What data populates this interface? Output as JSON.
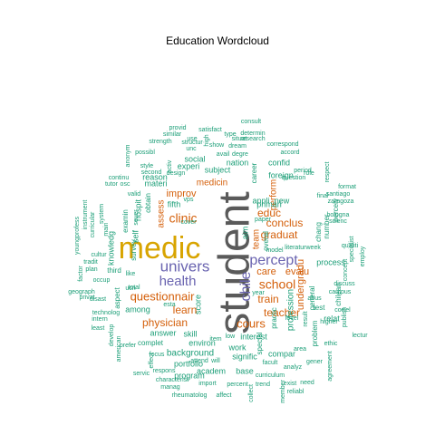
{
  "title": "Education  Wordcloud",
  "palette": {
    "grey": "#5a5a5a",
    "gold": "#d8a400",
    "purple": "#6a64b0",
    "orange": "#d45f0a",
    "teal": "#1b9e77",
    "pink": "#e7298a"
  },
  "words": [
    {
      "text": "student",
      "color": "grey"
    },
    {
      "text": "medic",
      "color": "gold"
    },
    {
      "text": "univers",
      "color": "purple"
    },
    {
      "text": "health",
      "color": "purple"
    },
    {
      "text": "percept",
      "color": "purple"
    },
    {
      "text": "questionnair",
      "color": "orange"
    },
    {
      "text": "clinic",
      "color": "orange"
    },
    {
      "text": "learn",
      "color": "orange"
    },
    {
      "text": "physician",
      "color": "orange"
    },
    {
      "text": "school",
      "color": "orange"
    },
    {
      "text": "chile",
      "color": "purple"
    },
    {
      "text": "cours",
      "color": "orange"
    },
    {
      "text": "teacher",
      "color": "orange"
    },
    {
      "text": "train",
      "color": "orange"
    },
    {
      "text": "graduat",
      "color": "orange"
    },
    {
      "text": "conclus",
      "color": "orange"
    },
    {
      "text": "undergradu",
      "color": "orange"
    },
    {
      "text": "educ",
      "color": "orange"
    },
    {
      "text": "care",
      "color": "orange"
    },
    {
      "text": "evalu",
      "color": "orange"
    },
    {
      "text": "improv",
      "color": "orange"
    },
    {
      "text": "medicin",
      "color": "orange"
    },
    {
      "text": "assess",
      "color": "orange"
    },
    {
      "text": "perform",
      "color": "orange"
    },
    {
      "text": "team",
      "color": "orange"
    },
    {
      "text": "aim",
      "color": "teal"
    },
    {
      "text": "skill",
      "color": "teal"
    },
    {
      "text": "answer",
      "color": "teal"
    },
    {
      "text": "among",
      "color": "teal"
    },
    {
      "text": "primari",
      "color": "teal"
    },
    {
      "text": "appli",
      "color": "teal"
    },
    {
      "text": "new",
      "color": "teal"
    },
    {
      "text": "profession",
      "color": "teal"
    },
    {
      "text": "interest",
      "color": "teal"
    },
    {
      "text": "score",
      "color": "teal"
    },
    {
      "text": "background",
      "color": "teal"
    },
    {
      "text": "work",
      "color": "teal"
    },
    {
      "text": "environ",
      "color": "teal"
    },
    {
      "text": "portfolio",
      "color": "teal"
    },
    {
      "text": "program",
      "color": "teal"
    },
    {
      "text": "academ",
      "color": "teal"
    },
    {
      "text": "base",
      "color": "teal"
    },
    {
      "text": "compar",
      "color": "teal"
    },
    {
      "text": "signific",
      "color": "teal"
    },
    {
      "text": "problem",
      "color": "teal"
    },
    {
      "text": "general",
      "color": "teal"
    },
    {
      "text": "relat",
      "color": "teal"
    },
    {
      "text": "test",
      "color": "teal"
    },
    {
      "text": "process",
      "color": "teal"
    },
    {
      "text": "hospit",
      "color": "teal"
    },
    {
      "text": "fifth",
      "color": "teal"
    },
    {
      "text": "materi",
      "color": "teal"
    },
    {
      "text": "experi",
      "color": "teal"
    },
    {
      "text": "social",
      "color": "teal"
    },
    {
      "text": "subject",
      "color": "teal"
    },
    {
      "text": "nation",
      "color": "teal"
    },
    {
      "text": "confid",
      "color": "teal"
    },
    {
      "text": "foreign",
      "color": "teal"
    },
    {
      "text": "career",
      "color": "teal"
    },
    {
      "text": "reason",
      "color": "teal"
    },
    {
      "text": "obtain",
      "color": "teal"
    },
    {
      "text": "examin",
      "color": "teal"
    },
    {
      "text": "knowledg",
      "color": "teal"
    },
    {
      "text": "self",
      "color": "teal"
    },
    {
      "text": "third",
      "color": "teal"
    },
    {
      "text": "survey",
      "color": "teal"
    },
    {
      "text": "aspect",
      "color": "teal"
    },
    {
      "text": "complet",
      "color": "teal"
    },
    {
      "text": "number",
      "color": "teal"
    },
    {
      "text": "perceiv",
      "color": "teal"
    },
    {
      "text": "chang",
      "color": "teal"
    },
    {
      "text": "chilean",
      "color": "teal"
    },
    {
      "text": "practic",
      "color": "teal"
    },
    {
      "text": "special",
      "color": "teal"
    },
    {
      "text": "overal",
      "color": "teal"
    },
    {
      "text": "analyz",
      "color": "teal"
    },
    {
      "text": "respect",
      "color": "teal"
    },
    {
      "text": "activ",
      "color": "teal"
    },
    {
      "text": "unc",
      "color": "teal"
    },
    {
      "text": "high",
      "color": "teal"
    },
    {
      "text": "vps",
      "color": "teal"
    },
    {
      "text": "esta",
      "color": "teal"
    },
    {
      "text": "sever",
      "color": "teal"
    },
    {
      "text": "consult",
      "color": "teal"
    },
    {
      "text": "provid",
      "color": "teal"
    },
    {
      "text": "satisfact",
      "color": "teal"
    },
    {
      "text": "determin",
      "color": "teal"
    },
    {
      "text": "similar",
      "color": "teal"
    },
    {
      "text": "type",
      "color": "teal"
    },
    {
      "text": "situat",
      "color": "teal"
    },
    {
      "text": "research",
      "color": "teal"
    },
    {
      "text": "strength",
      "color": "teal"
    },
    {
      "text": "structur",
      "color": "teal"
    },
    {
      "text": "show",
      "color": "teal"
    },
    {
      "text": "dream",
      "color": "teal"
    },
    {
      "text": "correspond",
      "color": "teal"
    },
    {
      "text": "possibl",
      "color": "teal"
    },
    {
      "text": "design",
      "color": "teal"
    },
    {
      "text": "degre",
      "color": "teal"
    },
    {
      "text": "question",
      "color": "teal"
    },
    {
      "text": "period",
      "color": "teal"
    },
    {
      "text": "style",
      "color": "teal"
    },
    {
      "text": "second",
      "color": "teal"
    },
    {
      "text": "continu",
      "color": "teal"
    },
    {
      "text": "tutor",
      "color": "teal"
    },
    {
      "text": "osc",
      "color": "teal"
    },
    {
      "text": "cover",
      "color": "teal"
    },
    {
      "text": "valid",
      "color": "teal"
    },
    {
      "text": "format",
      "color": "teal"
    },
    {
      "text": "santiago",
      "color": "teal"
    },
    {
      "text": "zaragoza",
      "color": "teal"
    },
    {
      "text": "bologna",
      "color": "teal"
    },
    {
      "text": "literaturweek",
      "color": "teal"
    },
    {
      "text": "campus",
      "color": "teal"
    },
    {
      "text": "discuss",
      "color": "teal"
    },
    {
      "text": "abus",
      "color": "teal"
    },
    {
      "text": "youngprofess",
      "color": "teal"
    },
    {
      "text": "curricular",
      "color": "teal"
    },
    {
      "text": "instrument",
      "color": "teal"
    },
    {
      "text": "system",
      "color": "teal"
    },
    {
      "text": "main",
      "color": "teal"
    },
    {
      "text": "geograph",
      "color": "teal"
    },
    {
      "text": "privat",
      "color": "teal"
    },
    {
      "text": "intern",
      "color": "teal"
    },
    {
      "text": "least",
      "color": "teal"
    },
    {
      "text": "tradit",
      "color": "teal"
    },
    {
      "text": "plan",
      "color": "teal"
    },
    {
      "text": "cultur",
      "color": "teal"
    },
    {
      "text": "occup",
      "color": "teal"
    },
    {
      "text": "factor",
      "color": "teal"
    },
    {
      "text": "technolog",
      "color": "teal"
    },
    {
      "text": "disast",
      "color": "teal"
    },
    {
      "text": "develop",
      "color": "teal"
    },
    {
      "text": "american",
      "color": "teal"
    },
    {
      "text": "prefer",
      "color": "teal"
    },
    {
      "text": "servic",
      "color": "teal"
    },
    {
      "text": "characterist",
      "color": "teal"
    },
    {
      "text": "manag",
      "color": "teal"
    },
    {
      "text": "rheumatolog",
      "color": "teal"
    },
    {
      "text": "respons",
      "color": "teal"
    },
    {
      "text": "import",
      "color": "teal"
    },
    {
      "text": "percent",
      "color": "teal"
    },
    {
      "text": "curriculum",
      "color": "teal"
    },
    {
      "text": "trend",
      "color": "teal"
    },
    {
      "text": "reliabl",
      "color": "teal"
    },
    {
      "text": "need",
      "color": "teal"
    },
    {
      "text": "facult",
      "color": "teal"
    },
    {
      "text": "attend",
      "color": "teal"
    },
    {
      "text": "focus",
      "color": "teal"
    },
    {
      "text": "effect",
      "color": "teal"
    },
    {
      "text": "member",
      "color": "teal"
    },
    {
      "text": "agreement",
      "color": "teal"
    },
    {
      "text": "gener",
      "color": "teal"
    },
    {
      "text": "exist",
      "color": "teal"
    },
    {
      "text": "affect",
      "color": "teal"
    },
    {
      "text": "collect",
      "color": "teal"
    },
    {
      "text": "specialist",
      "color": "teal"
    },
    {
      "text": "publish",
      "color": "teal"
    },
    {
      "text": "employ",
      "color": "teal"
    },
    {
      "text": "qualiti",
      "color": "teal"
    },
    {
      "text": "scienc",
      "color": "teal"
    },
    {
      "text": "correl",
      "color": "teal"
    },
    {
      "text": "higher",
      "color": "teal"
    },
    {
      "text": "lectur",
      "color": "teal"
    },
    {
      "text": "ethic",
      "color": "teal"
    },
    {
      "text": "anonym",
      "color": "teal"
    },
    {
      "text": "accord",
      "color": "teal"
    },
    {
      "text": "low",
      "color": "teal"
    },
    {
      "text": "item",
      "color": "teal"
    },
    {
      "text": "will",
      "color": "teal"
    },
    {
      "text": "area",
      "color": "teal"
    },
    {
      "text": "like",
      "color": "teal"
    },
    {
      "text": "ucn",
      "color": "teal"
    },
    {
      "text": "use",
      "color": "teal"
    },
    {
      "text": "avail",
      "color": "teal"
    },
    {
      "text": "total",
      "color": "teal"
    },
    {
      "text": "paper",
      "color": "teal"
    },
    {
      "text": "model",
      "color": "teal"
    },
    {
      "text": "level",
      "color": "teal"
    },
    {
      "text": "year",
      "color": "teal"
    },
    {
      "text": "concept",
      "color": "teal"
    },
    {
      "text": "role",
      "color": "teal"
    },
    {
      "text": "final",
      "color": "teal"
    },
    {
      "text": "result",
      "color": "teal"
    }
  ]
}
